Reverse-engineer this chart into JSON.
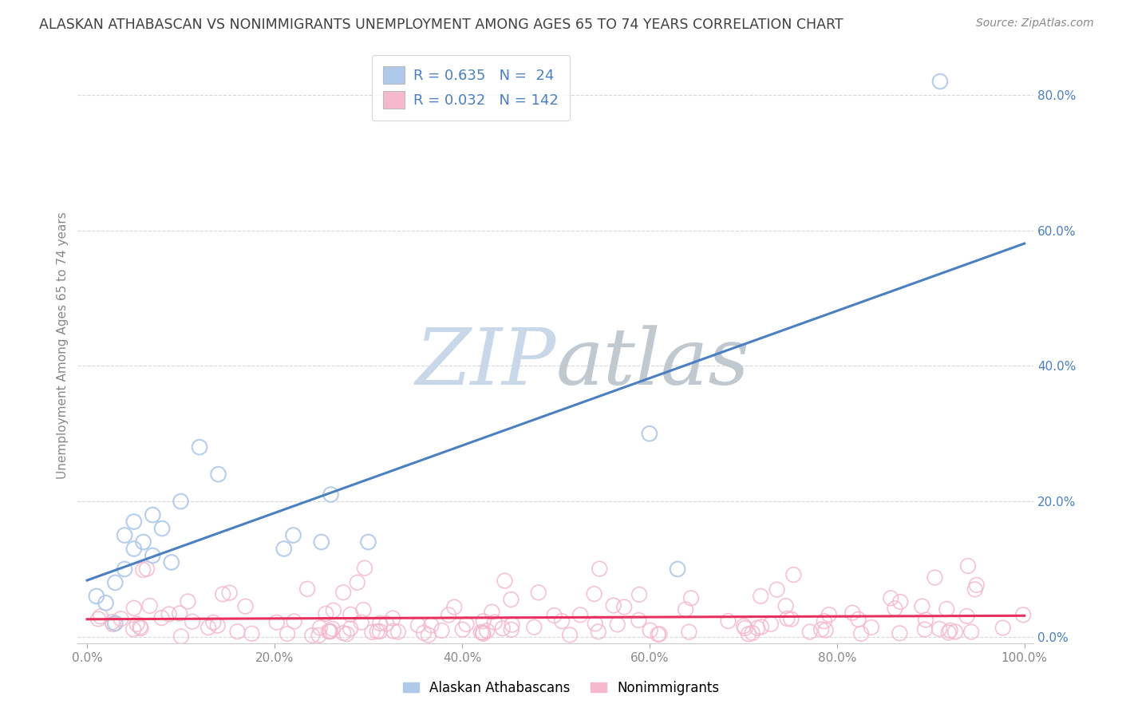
{
  "title": "ALASKAN ATHABASCAN VS NONIMMIGRANTS UNEMPLOYMENT AMONG AGES 65 TO 74 YEARS CORRELATION CHART",
  "source": "Source: ZipAtlas.com",
  "ylabel": "Unemployment Among Ages 65 to 74 years",
  "xlabel": "",
  "xlim": [
    -0.01,
    1.01
  ],
  "ylim": [
    -0.01,
    0.87
  ],
  "yticks": [
    0.0,
    0.2,
    0.4,
    0.6,
    0.8
  ],
  "ytick_labels": [
    "0.0%",
    "20.0%",
    "40.0%",
    "60.0%",
    "80.0%"
  ],
  "xticks": [
    0.0,
    0.2,
    0.4,
    0.6,
    0.8,
    1.0
  ],
  "xtick_labels": [
    "0.0%",
    "20.0%",
    "40.0%",
    "60.0%",
    "80.0%",
    "100.0%"
  ],
  "legend_r1": "R = 0.635",
  "legend_n1": "N =  24",
  "legend_r2": "R = 0.032",
  "legend_n2": "N = 142",
  "legend_label1": "Alaskan Athabascans",
  "legend_label2": "Nonimmigrants",
  "color_blue": "#aec9ea",
  "color_pink": "#f5b8cc",
  "line_color_blue": "#4a7fc1",
  "line_color_pink": "#e83060",
  "title_color": "#404040",
  "source_color": "#888888",
  "legend_text_color": "#4a7fc1",
  "watermark_zip_color": "#c8d8e8",
  "watermark_atlas_color": "#c0c8d0",
  "background_color": "#ffffff",
  "grid_color": "#d8d8d8",
  "athabascan_x": [
    0.01,
    0.02,
    0.03,
    0.03,
    0.04,
    0.04,
    0.05,
    0.05,
    0.06,
    0.07,
    0.07,
    0.08,
    0.09,
    0.1,
    0.12,
    0.14,
    0.21,
    0.22,
    0.25,
    0.26,
    0.3,
    0.6,
    0.63,
    0.91
  ],
  "athabascan_y": [
    0.06,
    0.05,
    0.08,
    0.02,
    0.15,
    0.1,
    0.17,
    0.13,
    0.14,
    0.18,
    0.12,
    0.16,
    0.11,
    0.2,
    0.28,
    0.24,
    0.13,
    0.15,
    0.14,
    0.21,
    0.14,
    0.3,
    0.1,
    0.82
  ],
  "nonimmigrant_seed": 77
}
